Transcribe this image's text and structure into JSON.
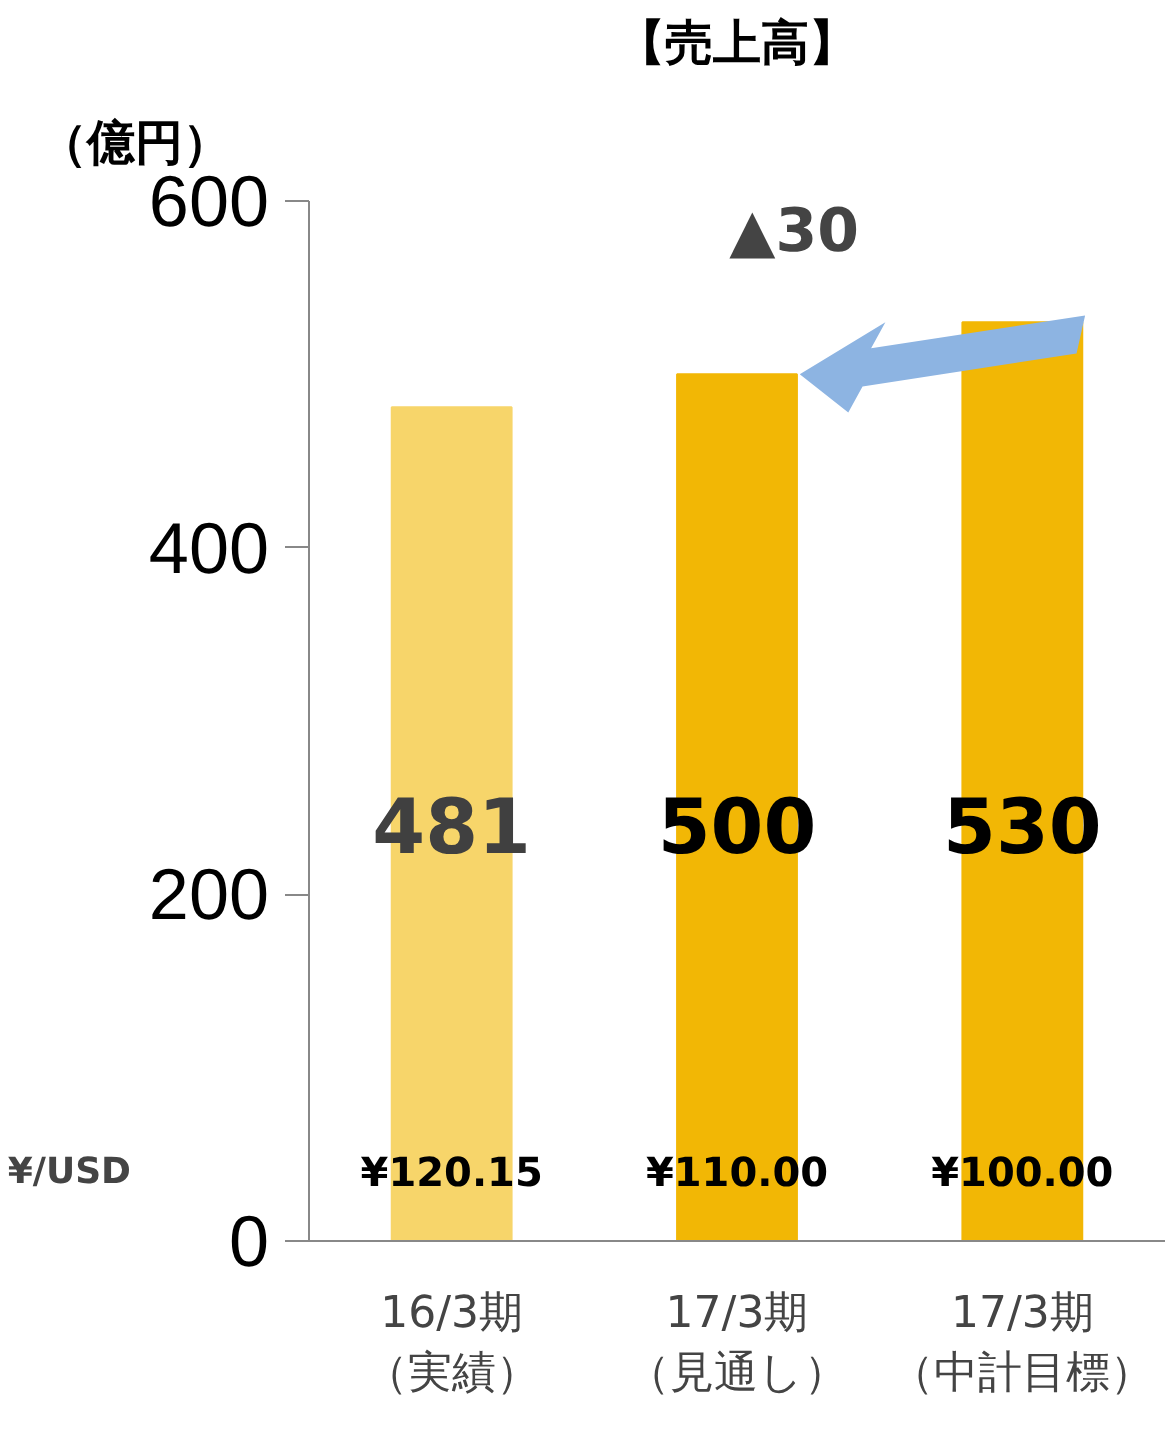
{
  "chart_data": {
    "type": "bar",
    "title": "【売上高】",
    "ylabel": "（億円）",
    "categories": [
      "16/3期（実績）",
      "17/3期（見通し）",
      "17/3期（中計目標）"
    ],
    "values": [
      481,
      500,
      530
    ],
    "colors": [
      "#f7d56a",
      "#f2b705",
      "#f2b705"
    ],
    "ylim": [
      0,
      600
    ],
    "yticks": [
      0,
      200,
      400,
      600
    ],
    "grid": false,
    "data_labels": true,
    "annotations": [
      "▲30",
      "¥/USD",
      "¥120.15",
      "¥110.00",
      "¥100.00"
    ]
  }
}
